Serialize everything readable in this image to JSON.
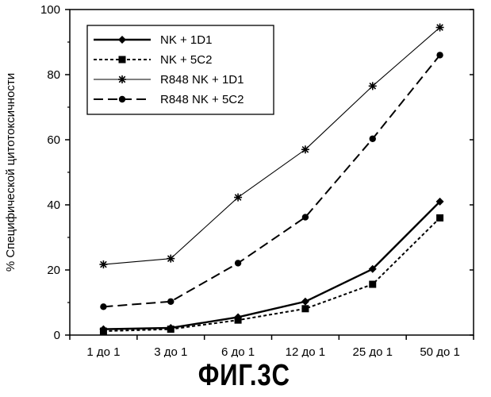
{
  "caption": "ФИГ.3С",
  "chart_data": {
    "type": "line",
    "title": "",
    "xlabel": "",
    "ylabel": "% Специфической цитотоксичности",
    "categories": [
      "1 до 1",
      "3 до 1",
      "6 до 1",
      "12 до 1",
      "25 до 1",
      "50 до 1"
    ],
    "ylim": [
      0,
      100
    ],
    "yticks": [
      0,
      20,
      40,
      60,
      80,
      100
    ],
    "grid": false,
    "legend_position": "top-left",
    "series": [
      {
        "name": "NK + 1D1",
        "values": [
          1.8,
          2.2,
          5.5,
          10.3,
          20.3,
          41.0
        ],
        "marker": "diamond",
        "line": "solid-thick",
        "color": "#000000"
      },
      {
        "name": "NK + 5C2",
        "values": [
          1.2,
          1.8,
          4.6,
          8.1,
          15.6,
          36.0
        ],
        "marker": "square",
        "line": "dotted",
        "color": "#000000"
      },
      {
        "name": "R848 NK + 1D1",
        "values": [
          21.7,
          23.5,
          42.3,
          57.0,
          76.5,
          94.5
        ],
        "marker": "star",
        "line": "solid-thin",
        "color": "#000000"
      },
      {
        "name": "R848 NK + 5C2",
        "values": [
          8.7,
          10.3,
          22.1,
          36.2,
          60.3,
          86.0
        ],
        "marker": "circle",
        "line": "dashed",
        "color": "#000000"
      }
    ]
  }
}
